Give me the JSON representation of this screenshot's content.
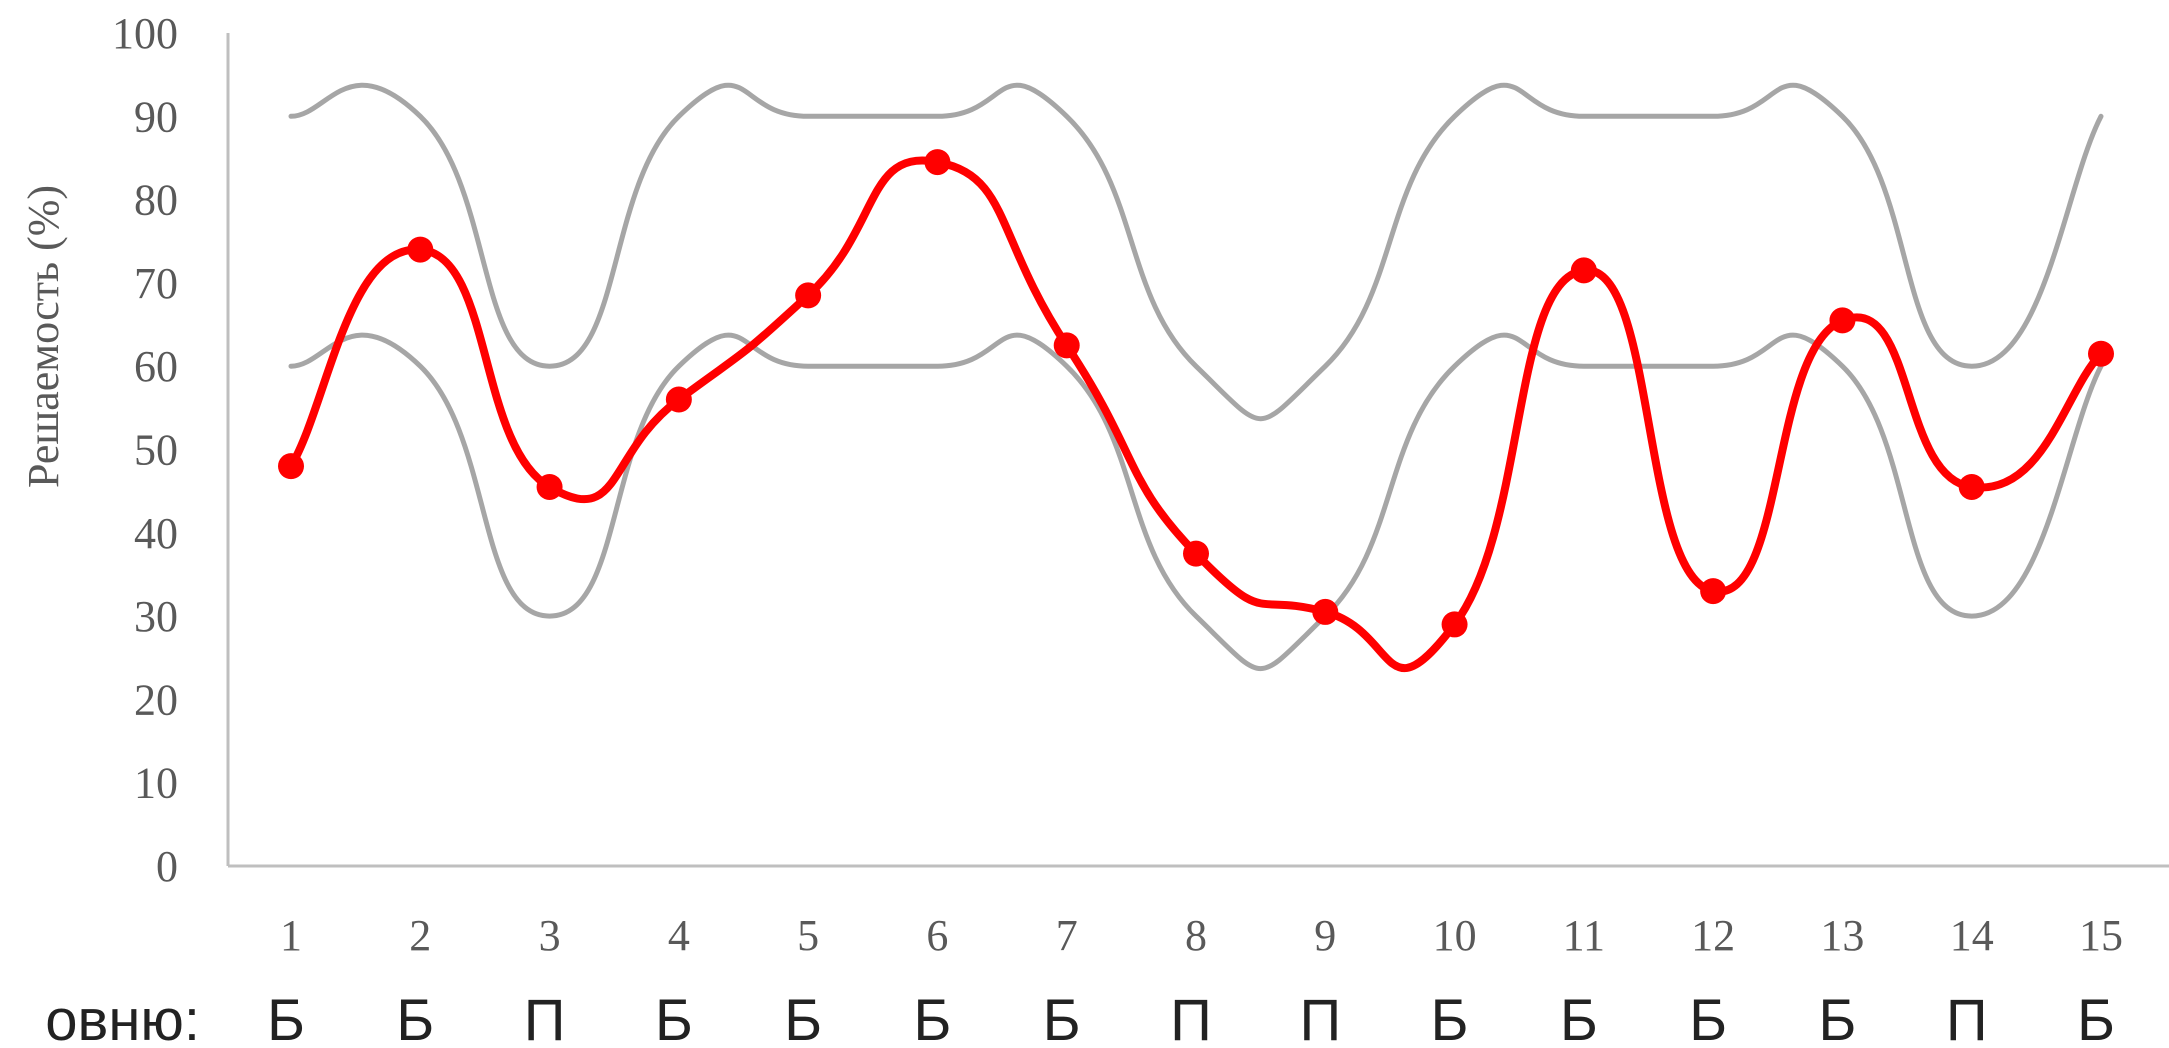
{
  "chart_data": {
    "type": "line",
    "title": "",
    "xlabel": "",
    "ylabel": "Решаемость (%)",
    "ylim": [
      0,
      100
    ],
    "yticks": [
      0,
      10,
      20,
      30,
      40,
      50,
      60,
      70,
      80,
      90,
      100
    ],
    "x": [
      1,
      2,
      3,
      4,
      5,
      6,
      7,
      8,
      9,
      10,
      11,
      12,
      13,
      14,
      15
    ],
    "grid": false,
    "legend": "none",
    "series": [
      {
        "values": [
          90,
          90,
          60,
          90,
          90,
          90,
          90,
          60,
          60,
          90,
          90,
          90,
          90,
          60,
          90
        ],
        "color": "#a6a6a6",
        "markers": false
      },
      {
        "values": [
          60,
          60,
          30,
          60,
          60,
          60,
          60,
          30,
          30,
          60,
          60,
          60,
          60,
          30,
          60
        ],
        "color": "#a6a6a6",
        "markers": false
      },
      {
        "values": [
          48,
          74,
          45.5,
          56,
          68.5,
          84.5,
          62.5,
          37.5,
          30.5,
          29,
          71.5,
          33,
          65.5,
          45.5,
          61.5
        ],
        "color": "#ff0000",
        "markers": true
      }
    ],
    "levels_prefix": "овню:",
    "levels": [
      "Б",
      "Б",
      "П",
      "Б",
      "Б",
      "Б",
      "Б",
      "П",
      "П",
      "Б",
      "Б",
      "Б",
      "Б",
      "П",
      "Б"
    ]
  }
}
